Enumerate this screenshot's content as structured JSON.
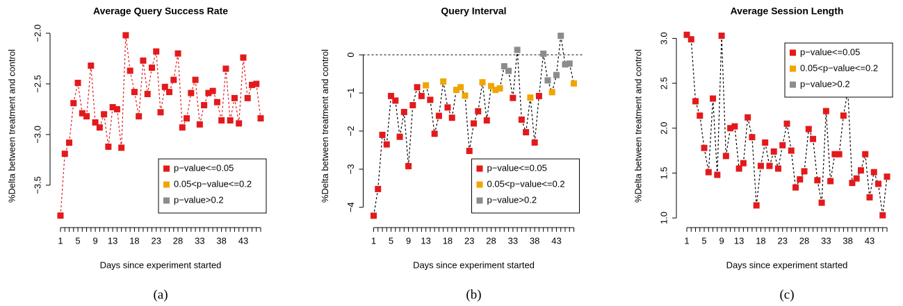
{
  "chart_data": [
    {
      "type": "line",
      "title": "Average Query Success Rate",
      "caption": "(a)",
      "x_label": "Days since experiment started",
      "y_label": "%Delta between treatment and control",
      "categories": [
        "1",
        null,
        null,
        null,
        "5",
        null,
        null,
        null,
        "9",
        null,
        null,
        null,
        "13",
        null,
        null,
        null,
        null,
        "18",
        null,
        null,
        null,
        null,
        "23",
        null,
        null,
        null,
        null,
        "28",
        null,
        null,
        null,
        null,
        "33",
        null,
        null,
        null,
        null,
        "38",
        null,
        null,
        null,
        null,
        "43",
        null,
        null,
        null,
        null
      ],
      "series": [
        {
          "name": "p−value<=0.05",
          "color": "#e31a1c",
          "values": [
            -3.8,
            -3.19,
            -3.08,
            -2.69,
            -2.49,
            -2.79,
            -2.82,
            -2.32,
            -2.88,
            -2.93,
            -2.8,
            -3.12,
            -2.73,
            -2.75,
            -3.13,
            -2.02,
            -2.37,
            -2.58,
            -2.82,
            -2.27,
            -2.6,
            -2.34,
            -2.18,
            -2.78,
            -2.53,
            -2.58,
            -2.46,
            -2.2,
            -2.93,
            -2.84,
            -2.59,
            -2.46,
            -2.9,
            -2.71,
            -2.59,
            -2.57,
            -2.68,
            -2.86,
            -2.35,
            -2.86,
            -2.64,
            -2.89,
            -2.24,
            -2.64,
            -2.51,
            -2.5,
            -2.84
          ]
        },
        {
          "name": "0.05<p−value<=0.2",
          "color": "#f0a500",
          "values": [
            null,
            null,
            null,
            null,
            null,
            null,
            null,
            null,
            null,
            null,
            null,
            null,
            null,
            null,
            null,
            null,
            null,
            null,
            null,
            null,
            null,
            null,
            null,
            null,
            null,
            null,
            null,
            null,
            null,
            null,
            null,
            null,
            null,
            null,
            null,
            null,
            null,
            null,
            null,
            null,
            null,
            null,
            null,
            null,
            null,
            null,
            null
          ]
        },
        {
          "name": "p−value>0.2",
          "color": "#8c8c8c",
          "values": [
            null,
            null,
            null,
            null,
            null,
            null,
            null,
            null,
            null,
            null,
            null,
            null,
            null,
            null,
            null,
            null,
            null,
            null,
            null,
            null,
            null,
            null,
            null,
            null,
            null,
            null,
            null,
            null,
            null,
            null,
            null,
            null,
            null,
            null,
            null,
            null,
            null,
            null,
            null,
            null,
            null,
            null,
            null,
            null,
            null,
            null,
            null
          ]
        }
      ],
      "line_color": "#e31a1c",
      "line_style": "dashed",
      "ylim": [
        -3.85,
        -1.98
      ],
      "yticks": [
        {
          "value": -3.5,
          "label": "−3.5"
        },
        {
          "value": -3,
          "label": "−3.0"
        },
        {
          "value": -2.5,
          "label": "−2.5"
        },
        {
          "value": -2,
          "label": "−2.0"
        }
      ],
      "legend": "bottomright"
    },
    {
      "type": "line",
      "title": "Query Interval",
      "caption": "(b)",
      "x_label": "Days since experiment started",
      "y_label": "%Delta between treatment and control",
      "categories": [
        "1",
        null,
        null,
        null,
        "5",
        null,
        null,
        null,
        "9",
        null,
        null,
        null,
        "13",
        null,
        null,
        null,
        null,
        "18",
        null,
        null,
        null,
        null,
        "23",
        null,
        null,
        null,
        null,
        "28",
        null,
        null,
        null,
        null,
        "33",
        null,
        null,
        null,
        null,
        "38",
        null,
        null,
        null,
        null,
        "43",
        null,
        null,
        null,
        null
      ],
      "series": [
        {
          "name": "p−value<=0.05",
          "color": "#e31a1c",
          "values": [
            -4.22,
            -3.52,
            -2.1,
            -2.35,
            -1.08,
            -1.2,
            -2.15,
            -1.5,
            -2.92,
            -1.32,
            -0.85,
            -1.08,
            null,
            -1.18,
            -2.07,
            -1.6,
            null,
            -1.38,
            -1.65,
            null,
            null,
            null,
            -2.52,
            -1.8,
            -1.48,
            null,
            -1.72,
            null,
            null,
            null,
            null,
            null,
            -1.13,
            null,
            -1.7,
            -2.03,
            null,
            -2.3,
            -1.08,
            null,
            null,
            null,
            null,
            null,
            null,
            null,
            null
          ]
        },
        {
          "name": "0.05<p−value<=0.2",
          "color": "#f0a500",
          "values": [
            null,
            null,
            null,
            null,
            null,
            null,
            null,
            null,
            null,
            null,
            null,
            null,
            -0.8,
            null,
            null,
            null,
            -0.7,
            null,
            null,
            -0.92,
            -0.85,
            -1.07,
            null,
            null,
            null,
            -0.72,
            null,
            -0.82,
            -0.92,
            -0.88,
            null,
            null,
            null,
            null,
            null,
            null,
            -1.12,
            null,
            null,
            null,
            null,
            -0.98,
            null,
            null,
            null,
            null,
            -0.75
          ]
        },
        {
          "name": "p−value>0.2",
          "color": "#8c8c8c",
          "values": [
            null,
            null,
            null,
            null,
            null,
            null,
            null,
            null,
            null,
            null,
            null,
            null,
            null,
            null,
            null,
            null,
            null,
            null,
            null,
            null,
            null,
            null,
            null,
            null,
            null,
            null,
            null,
            null,
            null,
            null,
            -0.3,
            -0.42,
            null,
            0.13,
            null,
            null,
            null,
            null,
            null,
            0.03,
            -0.67,
            null,
            -0.53,
            0.5,
            -0.25,
            -0.23,
            null
          ]
        }
      ],
      "line_color": "#000000",
      "line_style": "dashed",
      "reference_line": 0,
      "ylim": [
        -4.35,
        0.62
      ],
      "yticks": [
        {
          "value": -4,
          "label": "−4"
        },
        {
          "value": -3,
          "label": "−3"
        },
        {
          "value": -2,
          "label": "−2"
        },
        {
          "value": -1,
          "label": "−1"
        },
        0
      ],
      "legend": "bottomright"
    },
    {
      "type": "line",
      "title": "Average Session Length",
      "caption": "(c)",
      "x_label": "Days since experiment started",
      "y_label": "%Delta between treatment and control",
      "categories": [
        "1",
        null,
        null,
        null,
        "5",
        null,
        null,
        null,
        "9",
        null,
        null,
        null,
        "13",
        null,
        null,
        null,
        null,
        "18",
        null,
        null,
        null,
        null,
        "23",
        null,
        null,
        null,
        null,
        "28",
        null,
        null,
        null,
        null,
        "33",
        null,
        null,
        null,
        null,
        "38",
        null,
        null,
        null,
        null,
        "43",
        null,
        null,
        null,
        null
      ],
      "series": [
        {
          "name": "p−value<=0.05",
          "color": "#e31a1c",
          "values": [
            3.04,
            2.99,
            2.3,
            2.14,
            1.78,
            1.51,
            2.33,
            1.48,
            3.03,
            1.69,
            2.0,
            2.02,
            1.55,
            1.61,
            2.12,
            1.9,
            1.14,
            1.58,
            1.84,
            1.58,
            1.74,
            1.55,
            1.81,
            2.05,
            1.75,
            1.34,
            1.43,
            1.52,
            1.99,
            1.88,
            1.42,
            1.17,
            2.19,
            1.41,
            1.71,
            1.71,
            2.14,
            2.42,
            1.39,
            1.44,
            1.53,
            1.71,
            1.23,
            1.51,
            1.38,
            1.03,
            1.46
          ]
        },
        {
          "name": "0.05<p−value<=0.2",
          "color": "#f0a500",
          "values": [
            null,
            null,
            null,
            null,
            null,
            null,
            null,
            null,
            null,
            null,
            null,
            null,
            null,
            null,
            null,
            null,
            null,
            null,
            null,
            null,
            null,
            null,
            null,
            null,
            null,
            null,
            null,
            null,
            null,
            null,
            null,
            null,
            null,
            null,
            null,
            null,
            null,
            null,
            null,
            null,
            null,
            null,
            null,
            null,
            null,
            null,
            null
          ]
        },
        {
          "name": "p−value>0.2",
          "color": "#8c8c8c",
          "values": [
            null,
            null,
            null,
            null,
            null,
            null,
            null,
            null,
            null,
            null,
            null,
            null,
            null,
            null,
            null,
            null,
            null,
            null,
            null,
            null,
            null,
            null,
            null,
            null,
            null,
            null,
            null,
            null,
            null,
            null,
            null,
            null,
            null,
            null,
            null,
            null,
            null,
            null,
            null,
            null,
            null,
            null,
            null,
            null,
            null,
            null,
            null
          ]
        }
      ],
      "line_color": "#000000",
      "line_style": "dashed",
      "ylim": [
        0.97,
        3.08
      ],
      "yticks": [
        {
          "value": 1,
          "label": "1.0"
        },
        1.5,
        {
          "value": 2,
          "label": "2.0"
        },
        2.5,
        {
          "value": 3,
          "label": "3.0"
        }
      ],
      "legend": "topright"
    }
  ]
}
